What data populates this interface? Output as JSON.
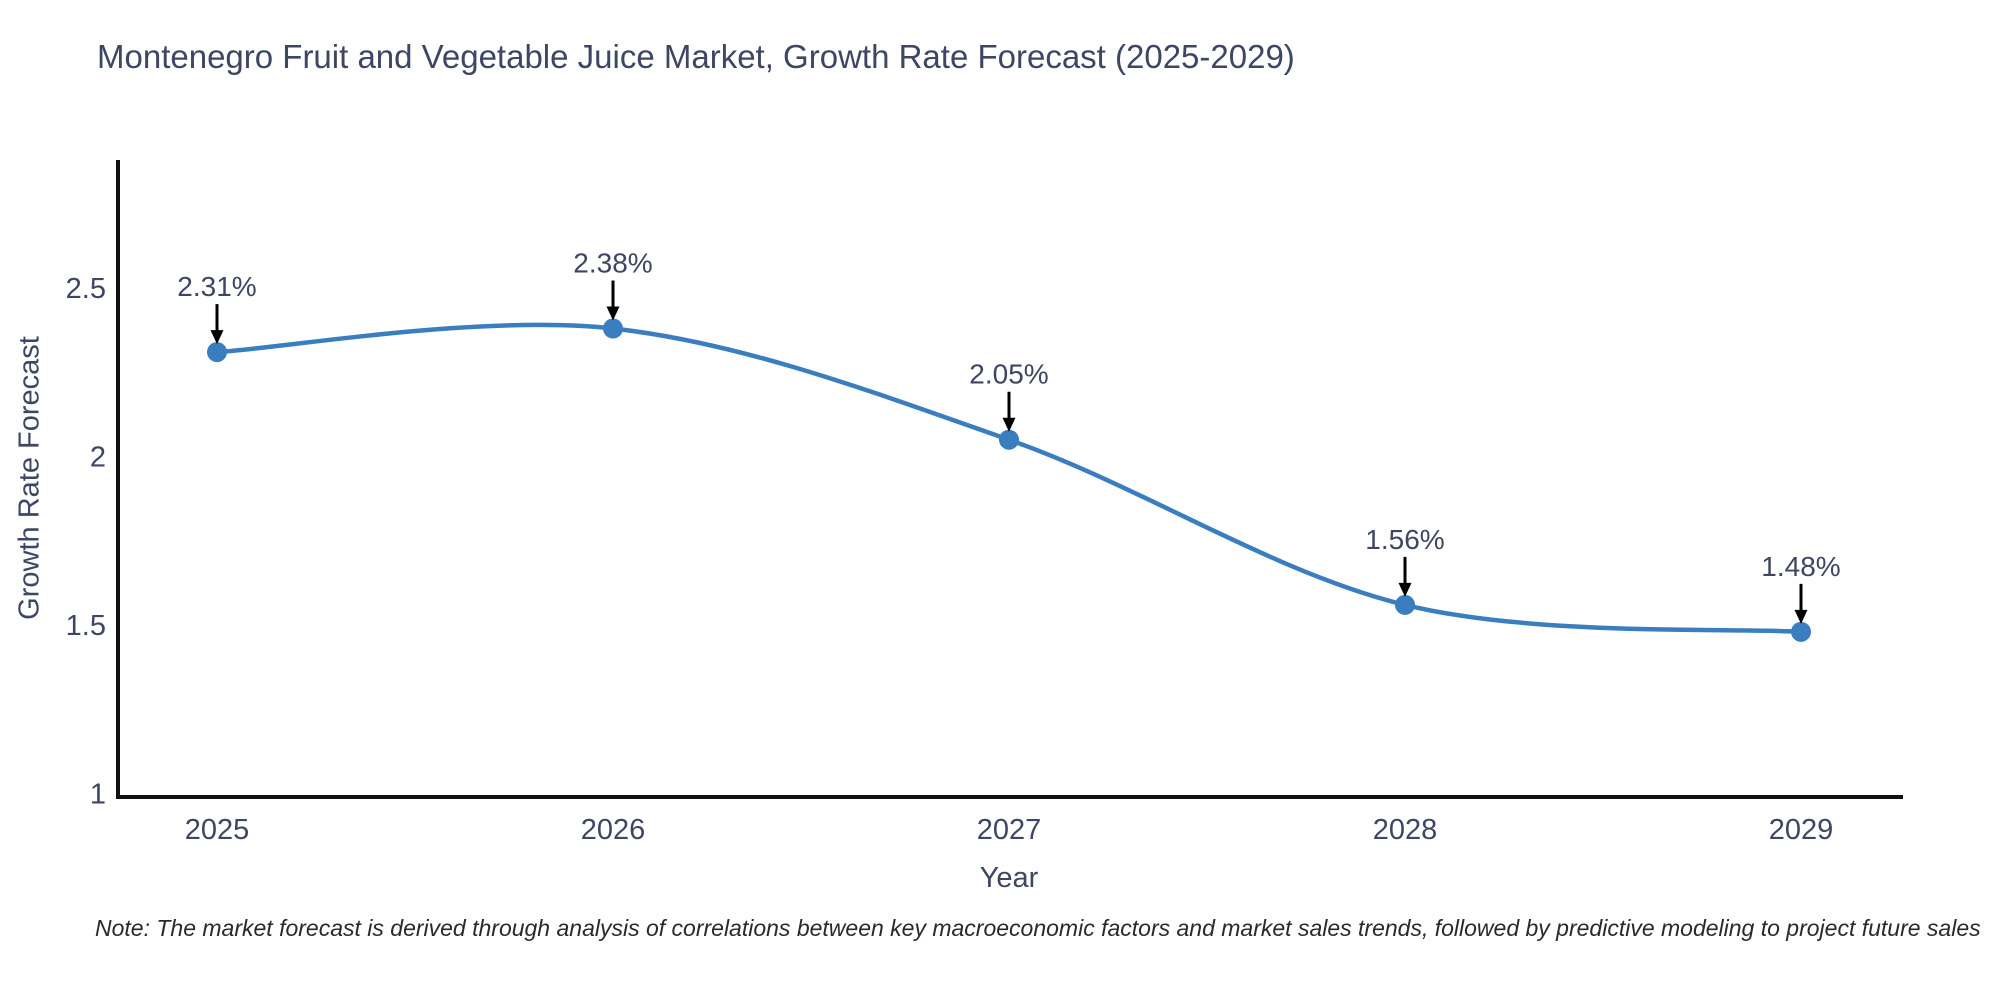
{
  "figure": {
    "title": "Montenegro Fruit and Vegetable Juice Market, Growth Rate Forecast (2025-2029)",
    "note": "Note: The market forecast is derived through analysis of correlations between key macroeconomic factors and market sales trends, followed by predictive modeling to project future sales"
  },
  "chart_data": {
    "type": "line",
    "line_shape": "spline",
    "title": "Montenegro Fruit and Vegetable Juice Market, Growth Rate Forecast (2025-2029)",
    "xlabel": "Year",
    "ylabel": "Growth Rate Forecast",
    "x": [
      2025,
      2026,
      2027,
      2028,
      2029
    ],
    "y": [
      2.31,
      2.38,
      2.05,
      1.56,
      1.48
    ],
    "point_labels": [
      "2.31%",
      "2.38%",
      "2.05%",
      "1.56%",
      "1.48%"
    ],
    "xtick_labels": [
      "2025",
      "2026",
      "2027",
      "2028",
      "2029"
    ],
    "ytick_values": [
      1,
      1.5,
      2,
      2.5
    ],
    "ytick_labels": [
      "1",
      "1.5",
      "2",
      "2.5"
    ],
    "xlim": [
      2024.75,
      2029.25
    ],
    "ylim": [
      0.99,
      2.88
    ],
    "grid": false,
    "legend": "none",
    "colors": {
      "line": "#3a7ebf",
      "marker": "#3a7ebf",
      "axis": "#111111",
      "arrow": "#000000",
      "text": "#3d4663"
    }
  }
}
